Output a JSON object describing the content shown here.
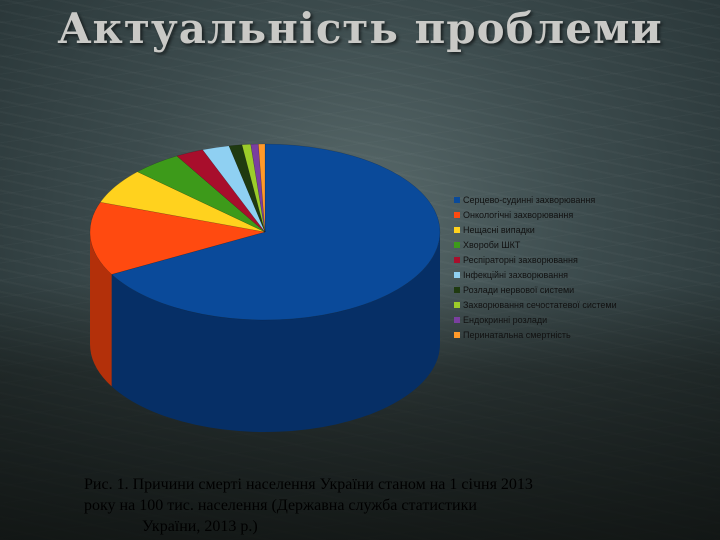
{
  "slide": {
    "title": "Актуальність проблеми",
    "caption_lines": [
      "Рис. 1. Причини смерті населення України станом на 1 січня 2013",
      "року на 100 тис. населення (Державна служба статистики",
      "України, 2013 р.)"
    ]
  },
  "chart_data": {
    "type": "pie",
    "style": "3d",
    "legend_position": "right",
    "categories": [
      "Серцево-судинні захворювання",
      "Онкологічні захворювання",
      "Нещасні випадки",
      "Хвороби ШКТ",
      "Респіраторні захворювання",
      "Інфекційні захворювання",
      "Розлади нервової системи",
      "Захворювання сечостатевої системи",
      "Ендокринні розлади",
      "Перинатальна смертність"
    ],
    "values": [
      67.0,
      13.5,
      6.5,
      4.6,
      2.6,
      2.5,
      1.2,
      0.8,
      0.7,
      0.6
    ],
    "colors": [
      "#0a4a9a",
      "#ff4a10",
      "#ffd21e",
      "#3d9a1a",
      "#a80e2c",
      "#8fd0f2",
      "#1f3a10",
      "#9ccc2a",
      "#7a3fa0",
      "#ff9a2a"
    ],
    "side_colors": [
      "#062f66",
      "#b3300a",
      "#b39414",
      "#2a6c12",
      "#740a1e",
      "#6399aa",
      "#15280b",
      "#6d8f1d",
      "#552c70",
      "#b36c1d"
    ]
  }
}
